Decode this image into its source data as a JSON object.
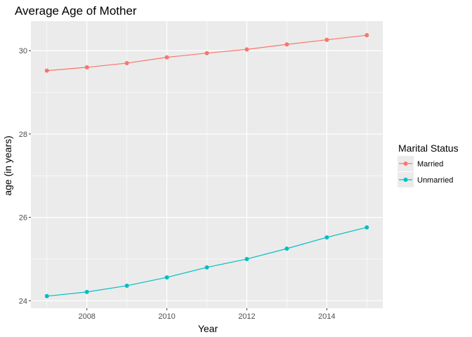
{
  "chart_data": {
    "type": "line",
    "title": "Average Age of Mother",
    "xlabel": "Year",
    "ylabel": "age (in years)",
    "x": [
      2007,
      2008,
      2009,
      2010,
      2011,
      2012,
      2013,
      2014,
      2015
    ],
    "xlim": [
      2006.6,
      2015.4
    ],
    "ylim": [
      23.82,
      30.71
    ],
    "xticks": [
      2008,
      2010,
      2012,
      2014
    ],
    "xtick_labels": [
      "2008",
      "2010",
      "2012",
      "2014"
    ],
    "yticks": [
      24,
      26,
      28,
      30
    ],
    "ytick_labels": [
      "24",
      "26",
      "28",
      "30"
    ],
    "grid": true,
    "legend": {
      "title": "Marital Status",
      "placement": "right"
    },
    "series": [
      {
        "name": "Married",
        "color": "#f8766d",
        "values": [
          29.52,
          29.6,
          29.7,
          29.84,
          29.94,
          30.03,
          30.15,
          30.26,
          30.37
        ]
      },
      {
        "name": "Unmarried",
        "color": "#00bfc4",
        "values": [
          24.11,
          24.21,
          24.36,
          24.56,
          24.8,
          25.0,
          25.25,
          25.52,
          25.76
        ]
      }
    ],
    "panel_color": "#ebebeb",
    "grid_color": "#ffffff"
  }
}
